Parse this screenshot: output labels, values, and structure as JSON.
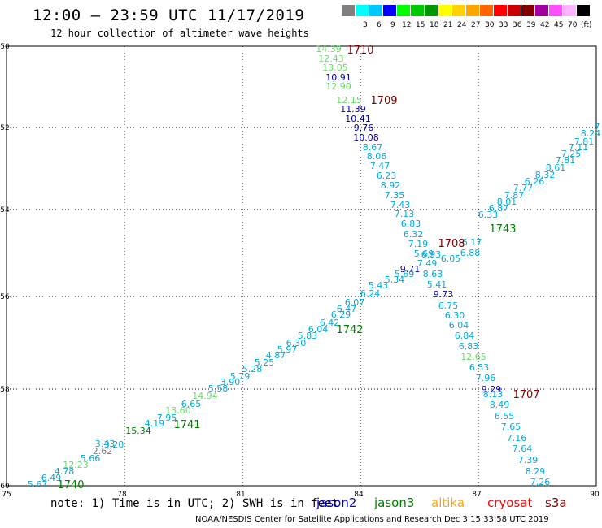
{
  "header": {
    "title": "12:00 – 23:59 UTC 11/17/2019",
    "subtitle": "12 hour collection of altimeter wave heights"
  },
  "scale": {
    "unit": "(ft)",
    "items": [
      {
        "label": "",
        "color": "#808080"
      },
      {
        "label": "3",
        "color": "#00ffff"
      },
      {
        "label": "6",
        "color": "#00c8ff"
      },
      {
        "label": "9",
        "color": "#0000ff"
      },
      {
        "label": "12",
        "color": "#00ff00"
      },
      {
        "label": "15",
        "color": "#00c800"
      },
      {
        "label": "18",
        "color": "#009600"
      },
      {
        "label": "21",
        "color": "#ffff00"
      },
      {
        "label": "24",
        "color": "#ffd200"
      },
      {
        "label": "27",
        "color": "#ffa500"
      },
      {
        "label": "30",
        "color": "#ff6400"
      },
      {
        "label": "33",
        "color": "#ff0000"
      },
      {
        "label": "36",
        "color": "#c80000"
      },
      {
        "label": "39",
        "color": "#800000"
      },
      {
        "label": "42",
        "color": "#a000a0"
      },
      {
        "label": "45",
        "color": "#ff50ff"
      },
      {
        "label": "70",
        "color": "#ffb4ff"
      },
      {
        "label": "",
        "color": "#000000"
      }
    ]
  },
  "axes": {
    "xticks": [
      "75",
      "78",
      "81",
      "84",
      "87",
      "90"
    ],
    "yticks": [
      "-50",
      "-52",
      "-54",
      "-56",
      "-58",
      "-60"
    ]
  },
  "passes": [
    {
      "label": "1710",
      "color": "#800000"
    },
    {
      "label": "1709",
      "color": "#800000"
    },
    {
      "label": "1708",
      "color": "#800000"
    },
    {
      "label": "1707",
      "color": "#800000"
    },
    {
      "label": "1743",
      "color": "#008000"
    },
    {
      "label": "1742",
      "color": "#008000"
    },
    {
      "label": "1741",
      "color": "#008000"
    },
    {
      "label": "1740",
      "color": "#008000"
    }
  ],
  "track_down": [
    {
      "v": "14.39",
      "c": "#66dd66"
    },
    {
      "v": "12.43",
      "c": "#66dd66"
    },
    {
      "v": "13.05",
      "c": "#66dd66"
    },
    {
      "v": "10.91",
      "c": "#0000aa"
    },
    {
      "v": "12.90",
      "c": "#66dd66"
    },
    {
      "v": "12.15",
      "c": "#66dd66"
    },
    {
      "v": "11.39",
      "c": "#0000aa"
    },
    {
      "v": "10.41",
      "c": "#0000aa"
    },
    {
      "v": "9.76",
      "c": "#0000aa"
    },
    {
      "v": "10.08",
      "c": "#0000aa"
    },
    {
      "v": "8.67",
      "c": "#00aadd"
    },
    {
      "v": "8.06",
      "c": "#00aadd"
    },
    {
      "v": "7.47",
      "c": "#00aadd"
    },
    {
      "v": "6.23",
      "c": "#00aadd"
    },
    {
      "v": "8.92",
      "c": "#00aadd"
    },
    {
      "v": "7.35",
      "c": "#00aadd"
    },
    {
      "v": "7.43",
      "c": "#00aadd"
    },
    {
      "v": "7.13",
      "c": "#00aadd"
    },
    {
      "v": "6.83",
      "c": "#00aadd"
    },
    {
      "v": "6.32",
      "c": "#00aadd"
    },
    {
      "v": "7.19",
      "c": "#00aadd"
    },
    {
      "v": "5.69",
      "c": "#00aadd"
    },
    {
      "v": "7.49",
      "c": "#00aadd"
    },
    {
      "v": "9.71",
      "c": "#0000aa"
    },
    {
      "v": "8.63",
      "c": "#00aadd"
    },
    {
      "v": "5.41",
      "c": "#00aadd"
    },
    {
      "v": "9.73",
      "c": "#0000aa"
    },
    {
      "v": "6.75",
      "c": "#00aadd"
    },
    {
      "v": "6.30",
      "c": "#00aadd"
    },
    {
      "v": "6.04",
      "c": "#00aadd"
    },
    {
      "v": "6.84",
      "c": "#00aadd"
    },
    {
      "v": "6.83",
      "c": "#00aadd"
    },
    {
      "v": "12.65",
      "c": "#66dd66"
    },
    {
      "v": "6.53",
      "c": "#00aadd"
    },
    {
      "v": "7.96",
      "c": "#00aadd"
    },
    {
      "v": "9.29",
      "c": "#0000aa"
    },
    {
      "v": "8.13",
      "c": "#00aadd"
    },
    {
      "v": "8.49",
      "c": "#00aadd"
    },
    {
      "v": "6.55",
      "c": "#00aadd"
    },
    {
      "v": "7.65",
      "c": "#00aadd"
    },
    {
      "v": "7.16",
      "c": "#00aadd"
    },
    {
      "v": "7.64",
      "c": "#00aadd"
    },
    {
      "v": "7.39",
      "c": "#00aadd"
    },
    {
      "v": "8.29",
      "c": "#00aadd"
    },
    {
      "v": "7.26",
      "c": "#00aadd"
    }
  ],
  "track_up": [
    {
      "v": "5.67",
      "c": "#00aadd"
    },
    {
      "v": "6.49",
      "c": "#00aadd"
    },
    {
      "v": "4.78",
      "c": "#00aadd"
    },
    {
      "v": "12.23",
      "c": "#66dd66"
    },
    {
      "v": "5.66",
      "c": "#00aadd"
    },
    {
      "v": "2.62",
      "c": "#777777"
    },
    {
      "v": "3.20",
      "c": "#00aadd"
    },
    {
      "v": "3.43",
      "c": "#00aadd"
    },
    {
      "v": "15.34",
      "c": "#008000"
    },
    {
      "v": "4.19",
      "c": "#00aadd"
    },
    {
      "v": "7.95",
      "c": "#00aadd"
    },
    {
      "v": "13.60",
      "c": "#66dd66"
    },
    {
      "v": "6.65",
      "c": "#00aadd"
    },
    {
      "v": "14.94",
      "c": "#66dd66"
    },
    {
      "v": "5.58",
      "c": "#00aadd"
    },
    {
      "v": "3.90",
      "c": "#00aadd"
    },
    {
      "v": "5.79",
      "c": "#00aadd"
    },
    {
      "v": "5.28",
      "c": "#00aadd"
    },
    {
      "v": "5.25",
      "c": "#00aadd"
    },
    {
      "v": "4.87",
      "c": "#00aadd"
    },
    {
      "v": "5.97",
      "c": "#00aadd"
    },
    {
      "v": "6.30",
      "c": "#00aadd"
    },
    {
      "v": "5.83",
      "c": "#00aadd"
    },
    {
      "v": "6.04",
      "c": "#00aadd"
    },
    {
      "v": "6.42",
      "c": "#00aadd"
    },
    {
      "v": "6.29",
      "c": "#00aadd"
    },
    {
      "v": "6.47",
      "c": "#00aadd"
    },
    {
      "v": "6.07",
      "c": "#00aadd"
    },
    {
      "v": "6.24",
      "c": "#00aadd"
    },
    {
      "v": "5.43",
      "c": "#00aadd"
    },
    {
      "v": "5.34",
      "c": "#00aadd"
    },
    {
      "v": "5.69",
      "c": "#00aadd"
    },
    {
      "v": "6.93",
      "c": "#00aadd"
    },
    {
      "v": "6.05",
      "c": "#00aadd"
    },
    {
      "v": "6.88",
      "c": "#00aadd"
    },
    {
      "v": "6.17",
      "c": "#00aadd"
    },
    {
      "v": "6.33",
      "c": "#00aadd"
    },
    {
      "v": "6.87",
      "c": "#00aadd"
    },
    {
      "v": "8.01",
      "c": "#00aadd"
    },
    {
      "v": "7.87",
      "c": "#00aadd"
    },
    {
      "v": "7.77",
      "c": "#00aadd"
    },
    {
      "v": "6.26",
      "c": "#00aadd"
    },
    {
      "v": "8.32",
      "c": "#00aadd"
    },
    {
      "v": "8.61",
      "c": "#00aadd"
    },
    {
      "v": "7.81",
      "c": "#00aadd"
    },
    {
      "v": "7.25",
      "c": "#00aadd"
    },
    {
      "v": "7.11",
      "c": "#00aadd"
    },
    {
      "v": "7.81",
      "c": "#00aadd"
    },
    {
      "v": "8.24",
      "c": "#00aadd"
    },
    {
      "v": "7",
      "c": "#00aadd"
    }
  ],
  "footer": {
    "note": "note: 1) Time is in UTC; 2) SWH is in feet",
    "satellites": [
      {
        "name": "jason2",
        "color": "#0000cc"
      },
      {
        "name": "jason3",
        "color": "#008000"
      },
      {
        "name": "altika",
        "color": "#ffa500"
      },
      {
        "name": "cryosat",
        "color": "#ff0000"
      },
      {
        "name": "s3a",
        "color": "#800000"
      }
    ],
    "credit": "NOAA/NESDIS Center for Satellite Applications and Research    Dec  3 15:33:58 UTC 2019"
  }
}
